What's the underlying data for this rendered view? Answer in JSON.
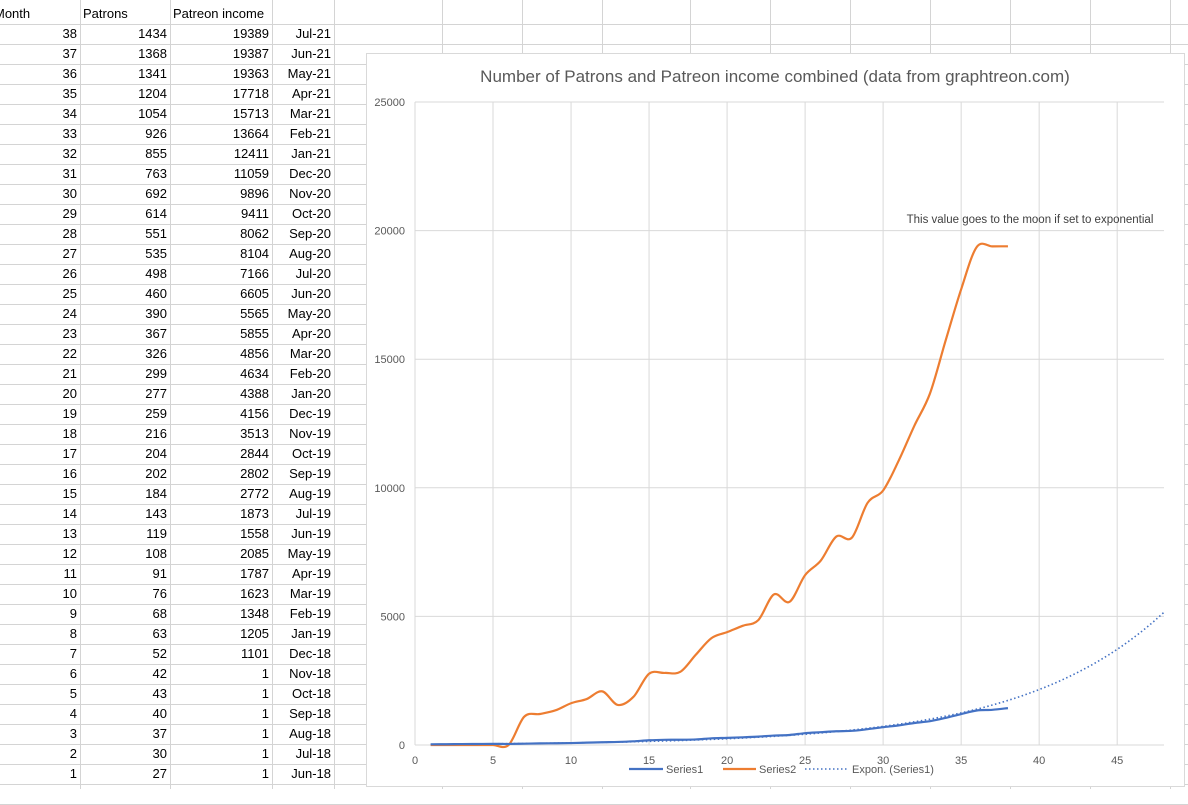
{
  "sheet": {
    "headers": {
      "month": "Month",
      "patrons": "Patrons",
      "income": "Patreon income"
    },
    "rows": [
      {
        "month": "38",
        "patrons": "1434",
        "income": "19389",
        "date": "Jul-21"
      },
      {
        "month": "37",
        "patrons": "1368",
        "income": "19387",
        "date": "Jun-21"
      },
      {
        "month": "36",
        "patrons": "1341",
        "income": "19363",
        "date": "May-21"
      },
      {
        "month": "35",
        "patrons": "1204",
        "income": "17718",
        "date": "Apr-21"
      },
      {
        "month": "34",
        "patrons": "1054",
        "income": "15713",
        "date": "Mar-21"
      },
      {
        "month": "33",
        "patrons": "926",
        "income": "13664",
        "date": "Feb-21"
      },
      {
        "month": "32",
        "patrons": "855",
        "income": "12411",
        "date": "Jan-21"
      },
      {
        "month": "31",
        "patrons": "763",
        "income": "11059",
        "date": "Dec-20"
      },
      {
        "month": "30",
        "patrons": "692",
        "income": "9896",
        "date": "Nov-20"
      },
      {
        "month": "29",
        "patrons": "614",
        "income": "9411",
        "date": "Oct-20"
      },
      {
        "month": "28",
        "patrons": "551",
        "income": "8062",
        "date": "Sep-20"
      },
      {
        "month": "27",
        "patrons": "535",
        "income": "8104",
        "date": "Aug-20"
      },
      {
        "month": "26",
        "patrons": "498",
        "income": "7166",
        "date": "Jul-20"
      },
      {
        "month": "25",
        "patrons": "460",
        "income": "6605",
        "date": "Jun-20"
      },
      {
        "month": "24",
        "patrons": "390",
        "income": "5565",
        "date": "May-20"
      },
      {
        "month": "23",
        "patrons": "367",
        "income": "5855",
        "date": "Apr-20"
      },
      {
        "month": "22",
        "patrons": "326",
        "income": "4856",
        "date": "Mar-20"
      },
      {
        "month": "21",
        "patrons": "299",
        "income": "4634",
        "date": "Feb-20"
      },
      {
        "month": "20",
        "patrons": "277",
        "income": "4388",
        "date": "Jan-20"
      },
      {
        "month": "19",
        "patrons": "259",
        "income": "4156",
        "date": "Dec-19"
      },
      {
        "month": "18",
        "patrons": "216",
        "income": "3513",
        "date": "Nov-19"
      },
      {
        "month": "17",
        "patrons": "204",
        "income": "2844",
        "date": "Oct-19"
      },
      {
        "month": "16",
        "patrons": "202",
        "income": "2802",
        "date": "Sep-19"
      },
      {
        "month": "15",
        "patrons": "184",
        "income": "2772",
        "date": "Aug-19"
      },
      {
        "month": "14",
        "patrons": "143",
        "income": "1873",
        "date": "Jul-19"
      },
      {
        "month": "13",
        "patrons": "119",
        "income": "1558",
        "date": "Jun-19"
      },
      {
        "month": "12",
        "patrons": "108",
        "income": "2085",
        "date": "May-19"
      },
      {
        "month": "11",
        "patrons": "91",
        "income": "1787",
        "date": "Apr-19"
      },
      {
        "month": "10",
        "patrons": "76",
        "income": "1623",
        "date": "Mar-19"
      },
      {
        "month": "9",
        "patrons": "68",
        "income": "1348",
        "date": "Feb-19"
      },
      {
        "month": "8",
        "patrons": "63",
        "income": "1205",
        "date": "Jan-19"
      },
      {
        "month": "7",
        "patrons": "52",
        "income": "1101",
        "date": "Dec-18"
      },
      {
        "month": "6",
        "patrons": "42",
        "income": "1",
        "date": "Nov-18"
      },
      {
        "month": "5",
        "patrons": "43",
        "income": "1",
        "date": "Oct-18"
      },
      {
        "month": "4",
        "patrons": "40",
        "income": "1",
        "date": "Sep-18"
      },
      {
        "month": "3",
        "patrons": "37",
        "income": "1",
        "date": "Aug-18"
      },
      {
        "month": "2",
        "patrons": "30",
        "income": "1",
        "date": "Jul-18"
      },
      {
        "month": "1",
        "patrons": "27",
        "income": "1",
        "date": "Jun-18"
      }
    ]
  },
  "chart_data": {
    "type": "scatter",
    "title": "Number of Patrons and Patreon income combined (data from graphtreon.com)",
    "annotation": "This value goes to the moon if set to exponential",
    "xlim": [
      0,
      48
    ],
    "ylim": [
      0,
      25000
    ],
    "x_ticks": [
      "0",
      "5",
      "10",
      "15",
      "20",
      "25",
      "30",
      "35",
      "40",
      "45"
    ],
    "y_ticks": [
      "0",
      "5000",
      "10000",
      "15000",
      "20000",
      "25000"
    ],
    "grid": true,
    "legend_position": "bottom",
    "colors": {
      "series1": "#4472c4",
      "series2": "#ed7d31",
      "trend": "#4472c4"
    },
    "series": [
      {
        "name": "Series1",
        "x": [
          1,
          2,
          3,
          4,
          5,
          6,
          7,
          8,
          9,
          10,
          11,
          12,
          13,
          14,
          15,
          16,
          17,
          18,
          19,
          20,
          21,
          22,
          23,
          24,
          25,
          26,
          27,
          28,
          29,
          30,
          31,
          32,
          33,
          34,
          35,
          36,
          37,
          38
        ],
        "values": [
          27,
          30,
          37,
          40,
          43,
          42,
          52,
          63,
          68,
          76,
          91,
          108,
          119,
          143,
          184,
          202,
          204,
          216,
          259,
          277,
          299,
          326,
          367,
          390,
          460,
          498,
          535,
          551,
          614,
          692,
          763,
          855,
          926,
          1054,
          1204,
          1341,
          1368,
          1434
        ]
      },
      {
        "name": "Series2",
        "x": [
          1,
          2,
          3,
          4,
          5,
          6,
          7,
          8,
          9,
          10,
          11,
          12,
          13,
          14,
          15,
          16,
          17,
          18,
          19,
          20,
          21,
          22,
          23,
          24,
          25,
          26,
          27,
          28,
          29,
          30,
          31,
          32,
          33,
          34,
          35,
          36,
          37,
          38
        ],
        "values": [
          1,
          1,
          1,
          1,
          1,
          1,
          1101,
          1205,
          1348,
          1623,
          1787,
          2085,
          1558,
          1873,
          2772,
          2802,
          2844,
          3513,
          4156,
          4388,
          4634,
          4856,
          5855,
          5565,
          6605,
          7166,
          8104,
          8062,
          9411,
          9896,
          11059,
          12411,
          13664,
          15713,
          17718,
          19363,
          19387,
          19389
        ]
      },
      {
        "name": "Expon. (Series1)",
        "trend": "exponential",
        "x": [
          3,
          48
        ],
        "values": [
          40,
          5150
        ]
      }
    ]
  }
}
